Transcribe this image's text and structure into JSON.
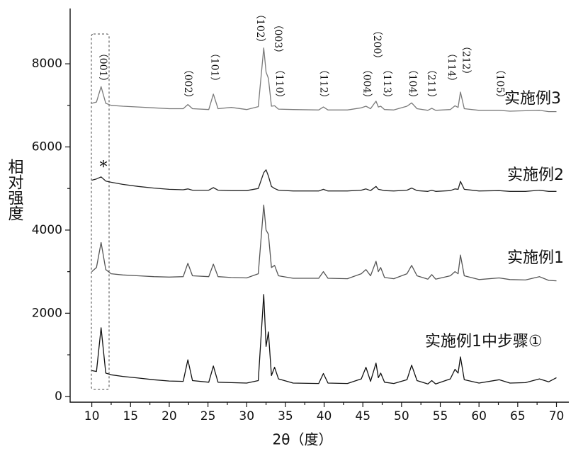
{
  "chart_data": {
    "type": "line",
    "xlabel": "2θ（度）",
    "ylabel": "相对强度",
    "xlim": [
      7.2,
      71.6
    ],
    "ylim": [
      -140,
      9330
    ],
    "xticks": [
      10,
      15,
      20,
      25,
      30,
      35,
      40,
      45,
      50,
      55,
      60,
      65,
      70
    ],
    "yticks": [
      0,
      2000,
      4000,
      6000,
      8000
    ],
    "x": [
      10,
      10.6,
      11.2,
      11.8,
      12.5,
      14,
      16,
      18,
      20,
      21.8,
      22.4,
      23,
      25.1,
      25.7,
      26.3,
      28,
      30,
      31.5,
      32.2,
      32.5,
      32.8,
      33.2,
      33.6,
      34.1,
      36,
      39.3,
      39.9,
      40.5,
      43,
      44.8,
      45.4,
      46,
      46.7,
      47,
      47.3,
      47.8,
      49,
      50.7,
      51.3,
      52,
      53.4,
      53.9,
      54.4,
      56.3,
      56.9,
      57.3,
      57.6,
      58.1,
      60,
      62.6,
      64,
      66,
      67.8,
      69,
      70
    ],
    "series": [
      {
        "name": "实施例3",
        "color": "#7a7a7a",
        "values": [
          7050,
          7080,
          7450,
          7050,
          7000,
          6980,
          6960,
          6940,
          6920,
          6920,
          7020,
          6920,
          6900,
          7270,
          6920,
          6950,
          6900,
          6970,
          8380,
          7800,
          7650,
          6980,
          6990,
          6910,
          6900,
          6890,
          6960,
          6890,
          6890,
          6940,
          6980,
          6920,
          7100,
          6960,
          6980,
          6900,
          6890,
          6980,
          7060,
          6920,
          6880,
          6930,
          6880,
          6900,
          6990,
          6950,
          7320,
          6920,
          6880,
          6880,
          6860,
          6870,
          6880,
          6850,
          6850
        ]
      },
      {
        "name": "实施例2",
        "color": "#222222",
        "values": [
          5200,
          5230,
          5280,
          5180,
          5150,
          5100,
          5050,
          5010,
          4980,
          4970,
          4990,
          4960,
          4960,
          5020,
          4960,
          4950,
          4950,
          5000,
          5380,
          5450,
          5300,
          5050,
          5000,
          4960,
          4940,
          4940,
          4980,
          4940,
          4940,
          4960,
          4990,
          4950,
          5050,
          4980,
          4970,
          4950,
          4940,
          4960,
          5010,
          4950,
          4930,
          4960,
          4930,
          4950,
          4990,
          4980,
          5170,
          4980,
          4940,
          4950,
          4930,
          4930,
          4960,
          4930,
          4930
        ]
      },
      {
        "name": "实施例1",
        "color": "#555555",
        "values": [
          3000,
          3100,
          3700,
          3050,
          2950,
          2920,
          2900,
          2880,
          2870,
          2880,
          3200,
          2900,
          2880,
          3180,
          2880,
          2860,
          2850,
          2950,
          4600,
          4000,
          3900,
          3100,
          3150,
          2900,
          2840,
          2840,
          3000,
          2840,
          2830,
          2950,
          3050,
          2900,
          3250,
          3000,
          3100,
          2860,
          2830,
          2950,
          3150,
          2900,
          2820,
          2930,
          2820,
          2900,
          3000,
          2950,
          3400,
          2900,
          2810,
          2850,
          2810,
          2800,
          2880,
          2790,
          2780
        ]
      },
      {
        "name": "实施例1中步骤①",
        "color": "#111111",
        "values": [
          620,
          600,
          1650,
          560,
          520,
          480,
          440,
          400,
          370,
          360,
          880,
          380,
          340,
          730,
          340,
          330,
          320,
          380,
          2450,
          1200,
          1550,
          500,
          700,
          420,
          320,
          310,
          550,
          320,
          310,
          420,
          700,
          360,
          800,
          450,
          560,
          340,
          310,
          400,
          750,
          380,
          300,
          380,
          300,
          420,
          650,
          560,
          950,
          400,
          320,
          400,
          320,
          330,
          420,
          350,
          450
        ]
      }
    ],
    "annotations": [
      {
        "text": "（001）",
        "x": 11.4,
        "y": 7915
      },
      {
        "text": "（002）",
        "x": 22.4,
        "y": 7520
      },
      {
        "text": "（101）",
        "x": 25.8,
        "y": 7915
      },
      {
        "text": "（102）",
        "x": 31.7,
        "y": 8850
      },
      {
        "text": "（003）",
        "x": 34.0,
        "y": 8600
      },
      {
        "text": "（110）",
        "x": 34.2,
        "y": 7520
      },
      {
        "text": "（112）",
        "x": 39.9,
        "y": 7520
      },
      {
        "text": "（004）",
        "x": 45.5,
        "y": 7520
      },
      {
        "text": "（200）",
        "x": 46.8,
        "y": 8460
      },
      {
        "text": "（113）",
        "x": 48.1,
        "y": 7520
      },
      {
        "text": "（104）",
        "x": 51.4,
        "y": 7520
      },
      {
        "text": "（211）",
        "x": 53.8,
        "y": 7520
      },
      {
        "text": "（114）",
        "x": 56.4,
        "y": 7915
      },
      {
        "text": "（212）",
        "x": 58.3,
        "y": 8085
      },
      {
        "text": "（105）",
        "x": 62.7,
        "y": 7520
      },
      {
        "text": "*",
        "x": 11.5,
        "y": 5500
      }
    ]
  }
}
